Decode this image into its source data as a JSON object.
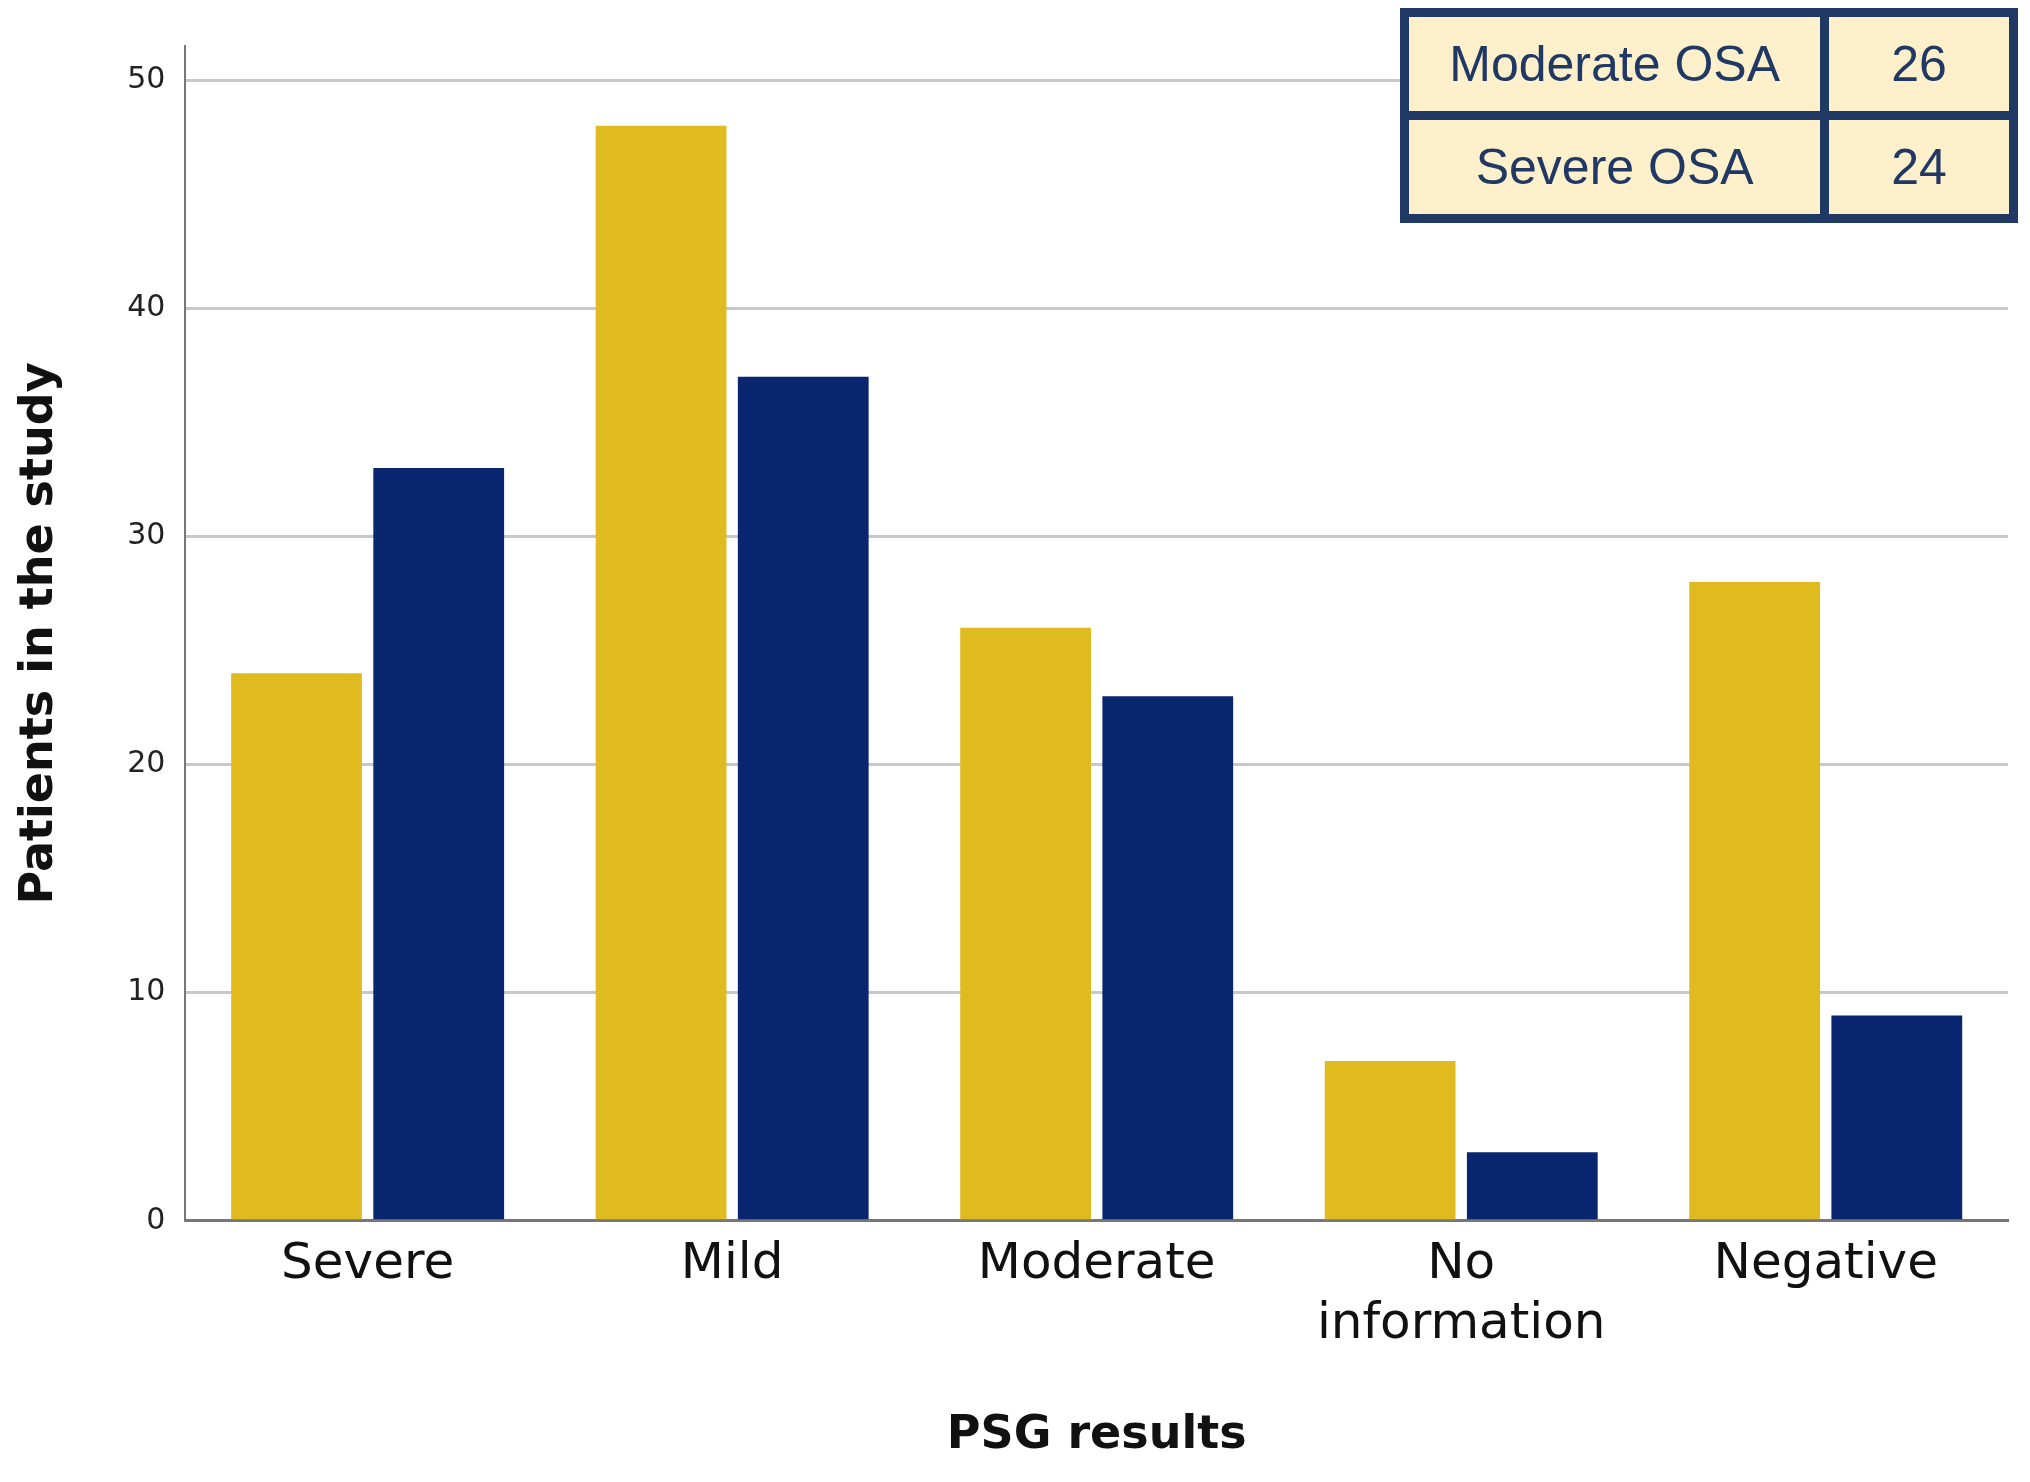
{
  "chart_data": {
    "type": "bar",
    "categories": [
      "Severe",
      "Mild",
      "Moderate",
      "No information",
      "Negative"
    ],
    "series": [
      {
        "color": "#dfbb20",
        "values": [
          24,
          48,
          26,
          7,
          28
        ]
      },
      {
        "color": "#0b2670",
        "values": [
          33,
          37,
          23,
          3,
          9
        ]
      }
    ],
    "xlabel": "PSG results",
    "ylabel": "Patients in the study",
    "ylim": [
      0,
      51.5
    ],
    "yticks": [
      0,
      10,
      20,
      30,
      40,
      50
    ],
    "grid": "y",
    "legend": false,
    "annotations": [
      "Moderate OSA",
      "26",
      "Severe OSA",
      "24"
    ]
  }
}
